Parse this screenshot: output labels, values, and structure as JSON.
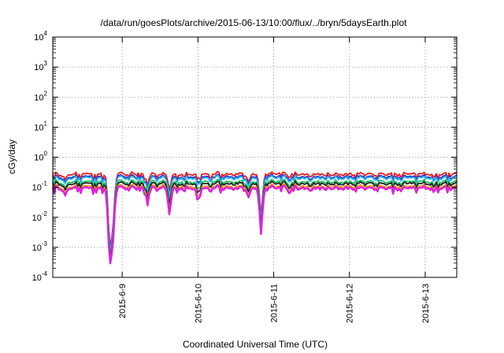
{
  "chart_data": {
    "type": "line",
    "title": "/data/run/goesPlots/archive/2015-06-13/10:00/flux/../bryn/5daysEarth.plot",
    "xlabel": "Coordinated Universal Time (UTC)",
    "ylabel": "cGy/day",
    "yscale": "log",
    "ylim": [
      0.0001,
      10000
    ],
    "xlim": [
      "2015-06-08T02:00",
      "2015-06-13T10:00"
    ],
    "grid": true,
    "legend": "none",
    "yticks": [
      {
        "value": 0.0001,
        "base": "10",
        "exp": "-4"
      },
      {
        "value": 0.001,
        "base": "10",
        "exp": "-3"
      },
      {
        "value": 0.01,
        "base": "10",
        "exp": "-2"
      },
      {
        "value": 0.1,
        "base": "10",
        "exp": "-1"
      },
      {
        "value": 1,
        "base": "10",
        "exp": "0"
      },
      {
        "value": 10,
        "base": "10",
        "exp": "1"
      },
      {
        "value": 100,
        "base": "10",
        "exp": "2"
      },
      {
        "value": 1000,
        "base": "10",
        "exp": "3"
      },
      {
        "value": 10000,
        "base": "10",
        "exp": "4"
      }
    ],
    "xticks": [
      {
        "value": "2015-06-09T00:00",
        "label": "2015-6-9"
      },
      {
        "value": "2015-06-10T00:00",
        "label": "2015-6-10"
      },
      {
        "value": "2015-06-11T00:00",
        "label": "2015-6-11"
      },
      {
        "value": "2015-06-12T00:00",
        "label": "2015-6-12"
      },
      {
        "value": "2015-06-13T00:00",
        "label": "2015-6-13"
      }
    ],
    "series": [
      {
        "color": "#ee1c1c",
        "base": 0.27
      },
      {
        "color": "#2030d8",
        "base": 0.22
      },
      {
        "color": "#2eb8e8",
        "base": 0.2
      },
      {
        "color": "#20c060",
        "base": 0.15
      },
      {
        "color": "#222222",
        "base": 0.13
      },
      {
        "color": "#f08a24",
        "base": 0.105
      },
      {
        "color": "#e020e0",
        "base": 0.092
      }
    ],
    "dips": [
      {
        "time": "2015-06-08T06:00",
        "factor": 0.55,
        "series_min_factor": 0.45
      },
      {
        "time": "2015-06-08T20:00",
        "factor": 0.0025,
        "series_min_factor": 0.002
      },
      {
        "time": "2015-06-08T21:00",
        "factor": 0.012,
        "series_min_factor": 0.01
      },
      {
        "time": "2015-06-09T08:00",
        "factor": 0.45,
        "series_min_factor": 0.3
      },
      {
        "time": "2015-06-09T15:00",
        "factor": 0.3,
        "series_min_factor": 0.12
      },
      {
        "time": "2015-06-10T00:00",
        "factor": 0.6,
        "series_min_factor": 0.3
      },
      {
        "time": "2015-06-10T16:00",
        "factor": 0.5,
        "series_min_factor": 0.45
      },
      {
        "time": "2015-06-10T20:00",
        "factor": 0.03,
        "series_min_factor": 0.024
      },
      {
        "time": "2015-06-11T05:00",
        "factor": 0.7,
        "series_min_factor": 0.6
      }
    ]
  }
}
